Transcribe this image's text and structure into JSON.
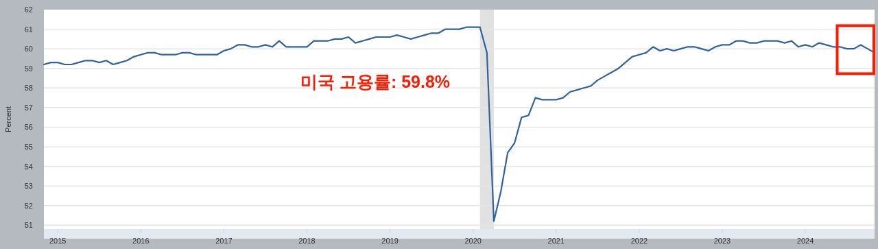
{
  "chart_data": {
    "type": "line",
    "ylabel": "Percent",
    "annotations": [
      "미국 고용률: 59.8%"
    ],
    "x": [
      "2014-11",
      "2014-12",
      "2015-01",
      "2015-02",
      "2015-03",
      "2015-04",
      "2015-05",
      "2015-06",
      "2015-07",
      "2015-08",
      "2015-09",
      "2015-10",
      "2015-11",
      "2015-12",
      "2016-01",
      "2016-02",
      "2016-03",
      "2016-04",
      "2016-05",
      "2016-06",
      "2016-07",
      "2016-08",
      "2016-09",
      "2016-10",
      "2016-11",
      "2016-12",
      "2017-01",
      "2017-02",
      "2017-03",
      "2017-04",
      "2017-05",
      "2017-06",
      "2017-07",
      "2017-08",
      "2017-09",
      "2017-10",
      "2017-11",
      "2017-12",
      "2018-01",
      "2018-02",
      "2018-03",
      "2018-04",
      "2018-05",
      "2018-06",
      "2018-07",
      "2018-08",
      "2018-09",
      "2018-10",
      "2018-11",
      "2018-12",
      "2019-01",
      "2019-02",
      "2019-03",
      "2019-04",
      "2019-05",
      "2019-06",
      "2019-07",
      "2019-08",
      "2019-09",
      "2019-10",
      "2019-11",
      "2019-12",
      "2020-01",
      "2020-02",
      "2020-03",
      "2020-04",
      "2020-05",
      "2020-06",
      "2020-07",
      "2020-08",
      "2020-09",
      "2020-10",
      "2020-11",
      "2020-12",
      "2021-01",
      "2021-02",
      "2021-03",
      "2021-04",
      "2021-05",
      "2021-06",
      "2021-07",
      "2021-08",
      "2021-09",
      "2021-10",
      "2021-11",
      "2021-12",
      "2022-01",
      "2022-02",
      "2022-03",
      "2022-04",
      "2022-05",
      "2022-06",
      "2022-07",
      "2022-08",
      "2022-09",
      "2022-10",
      "2022-11",
      "2022-12",
      "2023-01",
      "2023-02",
      "2023-03",
      "2023-04",
      "2023-05",
      "2023-06",
      "2023-07",
      "2023-08",
      "2023-09",
      "2023-10",
      "2023-11",
      "2023-12",
      "2024-01",
      "2024-02",
      "2024-03",
      "2024-04",
      "2024-05",
      "2024-06",
      "2024-07",
      "2024-08",
      "2024-09",
      "2024-10",
      "2024-11"
    ],
    "series": [
      {
        "color": "#30639c",
        "values": [
          59.2,
          59.3,
          59.3,
          59.2,
          59.2,
          59.3,
          59.4,
          59.4,
          59.3,
          59.4,
          59.2,
          59.3,
          59.4,
          59.6,
          59.7,
          59.8,
          59.8,
          59.7,
          59.7,
          59.7,
          59.8,
          59.8,
          59.7,
          59.7,
          59.7,
          59.7,
          59.9,
          60.0,
          60.2,
          60.2,
          60.1,
          60.1,
          60.2,
          60.1,
          60.4,
          60.1,
          60.1,
          60.1,
          60.1,
          60.4,
          60.4,
          60.4,
          60.5,
          60.5,
          60.6,
          60.3,
          60.4,
          60.5,
          60.6,
          60.6,
          60.6,
          60.7,
          60.6,
          60.5,
          60.6,
          60.7,
          60.8,
          60.8,
          61.0,
          61.0,
          61.0,
          61.1,
          61.1,
          61.1,
          59.8,
          51.2,
          52.7,
          54.7,
          55.2,
          56.5,
          56.6,
          57.5,
          57.4,
          57.4,
          57.4,
          57.5,
          57.8,
          57.9,
          58.0,
          58.1,
          58.4,
          58.6,
          58.8,
          59.0,
          59.3,
          59.6,
          59.7,
          59.8,
          60.1,
          59.9,
          60.0,
          59.9,
          60.0,
          60.1,
          60.1,
          60.0,
          59.9,
          60.1,
          60.2,
          60.2,
          60.4,
          60.4,
          60.3,
          60.3,
          60.4,
          60.4,
          60.4,
          60.3,
          60.4,
          60.1,
          60.2,
          60.1,
          60.3,
          60.2,
          60.1,
          60.1,
          60.0,
          60.0,
          60.2,
          60.0,
          59.8
        ]
      }
    ],
    "xlim": [
      "2014-11",
      "2024-11"
    ],
    "xticks": [
      "2015",
      "2016",
      "2017",
      "2018",
      "2019",
      "2020",
      "2021",
      "2022",
      "2023",
      "2024"
    ],
    "ylim": [
      50.8,
      62
    ],
    "yticks": [
      51,
      52,
      53,
      54,
      55,
      56,
      57,
      58,
      59,
      60,
      61,
      62
    ],
    "grid": "y",
    "marker": "none",
    "line_style": "solid",
    "bands": [
      {
        "axis": "x",
        "from": "2020-02",
        "to": "2020-04",
        "color": "#e1e1e1"
      }
    ]
  }
}
